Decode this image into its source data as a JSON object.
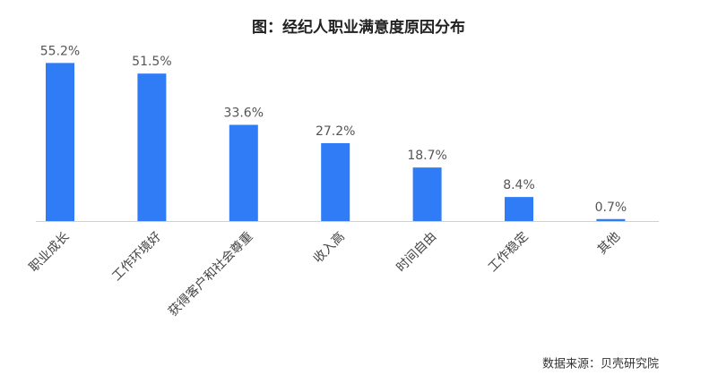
{
  "chart_data": {
    "type": "bar",
    "title": "图：经纪人职业满意度原因分布",
    "categories": [
      "职业成长",
      "工作环境好",
      "获得客户和社会尊重",
      "收入高",
      "时间自由",
      "工作稳定",
      "其他"
    ],
    "values": [
      55.2,
      51.5,
      33.6,
      27.2,
      18.7,
      8.4,
      0.7
    ],
    "value_labels": [
      "55.2%",
      "51.5%",
      "33.6%",
      "27.2%",
      "18.7%",
      "8.4%",
      "0.7%"
    ],
    "color": "#2f7cf6",
    "source": "数据来源：贝壳研究院"
  }
}
